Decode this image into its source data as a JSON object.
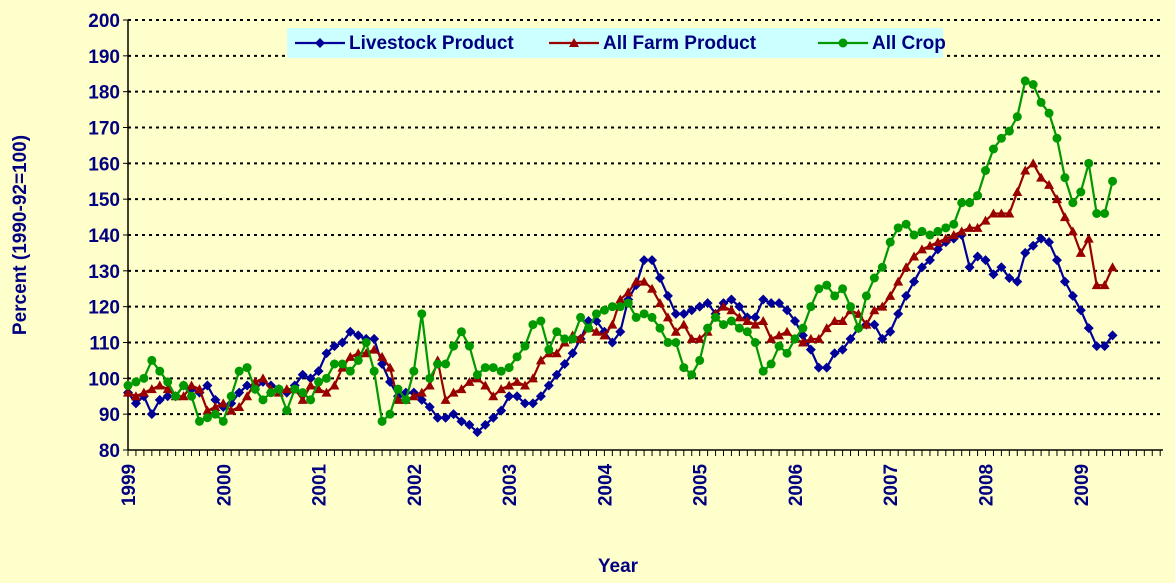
{
  "chart_data": {
    "type": "line",
    "y_axis_label": "Percent (1990-92=100)",
    "x_axis_label": "Year",
    "categories": [
      "1999",
      null,
      null,
      null,
      null,
      null,
      null,
      null,
      null,
      null,
      null,
      null,
      "2000",
      null,
      null,
      null,
      null,
      null,
      null,
      null,
      null,
      null,
      null,
      null,
      "2001",
      null,
      null,
      null,
      null,
      null,
      null,
      null,
      null,
      null,
      null,
      null,
      "2002",
      null,
      null,
      null,
      null,
      null,
      null,
      null,
      null,
      null,
      null,
      null,
      "2003",
      null,
      null,
      null,
      null,
      null,
      null,
      null,
      null,
      null,
      null,
      null,
      "2004",
      null,
      null,
      null,
      null,
      null,
      null,
      null,
      null,
      null,
      null,
      null,
      "2005",
      null,
      null,
      null,
      null,
      null,
      null,
      null,
      null,
      null,
      null,
      null,
      "2006",
      null,
      null,
      null,
      null,
      null,
      null,
      null,
      null,
      null,
      null,
      null,
      "2007",
      null,
      null,
      null,
      null,
      null,
      null,
      null,
      null,
      null,
      null,
      null,
      "2008",
      null,
      null,
      null,
      null,
      null,
      null,
      null,
      null,
      null,
      null,
      null,
      "2009",
      null,
      null,
      null,
      null
    ],
    "series": [
      {
        "name": "Livestock Product",
        "color": "#000099",
        "marker": "diamond",
        "values": [
          96,
          93,
          95,
          90,
          94,
          95,
          95,
          98,
          97,
          96,
          98,
          94,
          92,
          93,
          96,
          98,
          97,
          99,
          98,
          97,
          96,
          98,
          101,
          100,
          102,
          107,
          109,
          110,
          113,
          112,
          111,
          111,
          104,
          99,
          95,
          96,
          96,
          94,
          92,
          89,
          89,
          90,
          88,
          87,
          85,
          87,
          89,
          91,
          95,
          95,
          93,
          93,
          95,
          98,
          101,
          104,
          107,
          111,
          116,
          116,
          113,
          110,
          113,
          122,
          126,
          133,
          133,
          128,
          123,
          118,
          118,
          119,
          120,
          121,
          118,
          121,
          122,
          120,
          117,
          117,
          122,
          121,
          121,
          119,
          116,
          112,
          108,
          103,
          103,
          107,
          108,
          111,
          114,
          115,
          115,
          111,
          113,
          118,
          123,
          127,
          131,
          133,
          136,
          138,
          139,
          140,
          131,
          134,
          133,
          129,
          131,
          128,
          127,
          135,
          137,
          139,
          138,
          133,
          127,
          123,
          119,
          114,
          109,
          109,
          112
        ]
      },
      {
        "name": "All Farm Product",
        "color": "#990000",
        "marker": "triangle",
        "values": [
          96,
          95,
          96,
          97,
          98,
          97,
          95,
          95,
          98,
          97,
          91,
          92,
          93,
          91,
          92,
          95,
          99,
          100,
          97,
          96,
          97,
          97,
          94,
          98,
          97,
          96,
          98,
          103,
          106,
          107,
          107,
          108,
          106,
          103,
          94,
          94,
          95,
          96,
          98,
          105,
          94,
          96,
          97,
          99,
          100,
          98,
          95,
          97,
          98,
          99,
          98,
          100,
          105,
          107,
          107,
          110,
          112,
          111,
          114,
          113,
          112,
          115,
          122,
          124,
          127,
          127,
          125,
          121,
          117,
          113,
          115,
          111,
          111,
          113,
          118,
          120,
          119,
          117,
          116,
          115,
          116,
          111,
          112,
          113,
          111,
          110,
          111,
          111,
          114,
          116,
          116,
          119,
          118,
          115,
          119,
          120,
          123,
          127,
          131,
          134,
          136,
          137,
          138,
          139,
          140,
          141,
          142,
          142,
          144,
          146,
          146,
          146,
          152,
          158,
          160,
          156,
          154,
          150,
          145,
          141,
          135,
          139,
          126,
          126,
          131
        ]
      },
      {
        "name": "All Crop",
        "color": "#009900",
        "marker": "circle",
        "values": [
          98,
          99,
          100,
          105,
          102,
          99,
          95,
          98,
          95,
          88,
          89,
          90,
          88,
          95,
          102,
          103,
          97,
          94,
          96,
          97,
          91,
          97,
          96,
          94,
          99,
          100,
          104,
          104,
          102,
          105,
          110,
          102,
          88,
          90,
          97,
          94,
          102,
          118,
          100,
          104,
          104,
          109,
          113,
          109,
          101,
          103,
          103,
          102,
          103,
          106,
          109,
          115,
          116,
          108,
          113,
          111,
          111,
          117,
          114,
          118,
          119,
          120,
          120,
          121,
          117,
          118,
          117,
          114,
          110,
          110,
          103,
          101,
          105,
          114,
          117,
          115,
          116,
          114,
          113,
          110,
          102,
          104,
          109,
          107,
          111,
          114,
          120,
          125,
          126,
          123,
          125,
          120,
          114,
          123,
          128,
          131,
          138,
          142,
          143,
          140,
          141,
          140,
          141,
          142,
          143,
          149,
          149,
          151,
          158,
          164,
          167,
          169,
          173,
          183,
          182,
          177,
          174,
          167,
          156,
          149,
          152,
          160,
          146,
          146,
          155
        ]
      }
    ],
    "ylim": [
      80,
      200
    ],
    "yticks": [
      80,
      90,
      100,
      110,
      120,
      130,
      140,
      150,
      160,
      170,
      180,
      190,
      200
    ],
    "grid": true,
    "legend": "top"
  }
}
